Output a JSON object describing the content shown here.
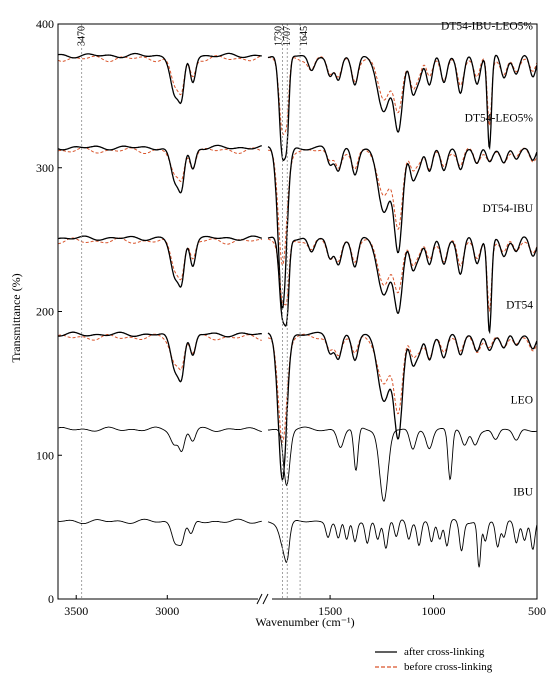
{
  "chart_data": {
    "type": "line",
    "title": "",
    "xlabel": "Wavenumber (cm⁻¹)",
    "ylabel": "Transmittance (%)",
    "x_reversed": true,
    "x_axis_broken": true,
    "x_segments": [
      [
        3600,
        2480
      ],
      [
        1800,
        500
      ]
    ],
    "ylim": [
      0,
      400
    ],
    "x_ticks": [
      3500,
      3000,
      1500,
      1000,
      500
    ],
    "y_ticks": [
      0,
      100,
      200,
      300,
      400
    ],
    "vertical_markers": [
      {
        "label": "3470",
        "x": 3470,
        "color": "#8c8c8c"
      },
      {
        "label": "1730",
        "x": 1730,
        "color": "#8c8c8c"
      },
      {
        "label": "1707",
        "x": 1707,
        "color": "#8c8c8c"
      },
      {
        "label": "1645",
        "x": 1645,
        "color": "#8c8c8c"
      }
    ],
    "legend": {
      "position": "bottom-right",
      "entries": [
        {
          "label": "after cross-linking",
          "style": "solid",
          "color": "#000000"
        },
        {
          "label": "before cross-linking",
          "style": "dashed",
          "color": "#d9542b"
        }
      ]
    },
    "series": [
      {
        "name": "DT54-IBU-LEO5%",
        "baseline": 378,
        "has_before": true,
        "peaks": [
          [
            2955,
            28,
            25
          ],
          [
            2920,
            22,
            15
          ],
          [
            2860,
            18,
            15
          ],
          [
            1730,
            70,
            15
          ],
          [
            1707,
            40,
            10
          ],
          [
            1590,
            10,
            15
          ],
          [
            1500,
            15,
            15
          ],
          [
            1460,
            18,
            15
          ],
          [
            1380,
            20,
            15
          ],
          [
            1240,
            40,
            30
          ],
          [
            1170,
            50,
            20
          ],
          [
            1100,
            25,
            15
          ],
          [
            1070,
            15,
            15
          ],
          [
            1020,
            20,
            15
          ],
          [
            950,
            20,
            15
          ],
          [
            870,
            25,
            15
          ],
          [
            790,
            20,
            15
          ],
          [
            730,
            65,
            10
          ],
          [
            660,
            15,
            15
          ],
          [
            600,
            12,
            15
          ],
          [
            520,
            15,
            15
          ]
        ]
      },
      {
        "name": "DT54-LEO5%",
        "baseline": 314,
        "has_before": true,
        "peaks": [
          [
            2955,
            25,
            25
          ],
          [
            2920,
            20,
            15
          ],
          [
            2860,
            15,
            15
          ],
          [
            1730,
            112,
            20
          ],
          [
            1500,
            12,
            15
          ],
          [
            1460,
            16,
            15
          ],
          [
            1380,
            18,
            15
          ],
          [
            1240,
            45,
            30
          ],
          [
            1170,
            70,
            20
          ],
          [
            1100,
            20,
            15
          ],
          [
            1070,
            12,
            15
          ],
          [
            1020,
            18,
            15
          ],
          [
            950,
            15,
            15
          ],
          [
            870,
            15,
            15
          ],
          [
            790,
            12,
            15
          ],
          [
            730,
            10,
            15
          ],
          [
            660,
            10,
            15
          ],
          [
            600,
            8,
            15
          ],
          [
            520,
            10,
            15
          ]
        ]
      },
      {
        "name": "DT54-IBU",
        "baseline": 251,
        "has_before": true,
        "peaks": [
          [
            2955,
            28,
            25
          ],
          [
            2920,
            22,
            15
          ],
          [
            2860,
            18,
            15
          ],
          [
            1730,
            55,
            15
          ],
          [
            1707,
            38,
            10
          ],
          [
            1590,
            10,
            15
          ],
          [
            1500,
            15,
            15
          ],
          [
            1460,
            18,
            15
          ],
          [
            1380,
            20,
            15
          ],
          [
            1240,
            40,
            30
          ],
          [
            1170,
            48,
            20
          ],
          [
            1100,
            22,
            15
          ],
          [
            1070,
            12,
            15
          ],
          [
            1020,
            18,
            15
          ],
          [
            950,
            18,
            15
          ],
          [
            870,
            25,
            15
          ],
          [
            790,
            18,
            15
          ],
          [
            730,
            65,
            10
          ],
          [
            660,
            12,
            15
          ],
          [
            600,
            10,
            15
          ],
          [
            520,
            12,
            15
          ]
        ]
      },
      {
        "name": "DT54",
        "baseline": 184,
        "has_before": true,
        "peaks": [
          [
            2955,
            25,
            25
          ],
          [
            2920,
            20,
            15
          ],
          [
            2860,
            15,
            15
          ],
          [
            1730,
            100,
            20
          ],
          [
            1500,
            12,
            15
          ],
          [
            1460,
            16,
            15
          ],
          [
            1380,
            18,
            15
          ],
          [
            1240,
            45,
            30
          ],
          [
            1170,
            70,
            20
          ],
          [
            1100,
            20,
            15
          ],
          [
            1070,
            12,
            15
          ],
          [
            1020,
            18,
            15
          ],
          [
            950,
            15,
            15
          ],
          [
            870,
            15,
            15
          ],
          [
            790,
            12,
            15
          ],
          [
            730,
            10,
            15
          ],
          [
            660,
            10,
            15
          ],
          [
            600,
            8,
            15
          ],
          [
            520,
            10,
            15
          ]
        ]
      },
      {
        "name": "LEO",
        "baseline": 118,
        "has_before": false,
        "peaks": [
          [
            2960,
            10,
            20
          ],
          [
            2920,
            14,
            15
          ],
          [
            2860,
            8,
            15
          ],
          [
            1710,
            38,
            15
          ],
          [
            1450,
            12,
            15
          ],
          [
            1375,
            30,
            10
          ],
          [
            1240,
            50,
            20
          ],
          [
            1100,
            15,
            15
          ],
          [
            1020,
            12,
            15
          ],
          [
            920,
            35,
            10
          ],
          [
            850,
            12,
            15
          ],
          [
            800,
            10,
            15
          ],
          [
            700,
            8,
            15
          ],
          [
            600,
            8,
            15
          ]
        ]
      },
      {
        "name": "IBU",
        "baseline": 54,
        "has_before": false,
        "peaks": [
          [
            2955,
            14,
            20
          ],
          [
            2920,
            12,
            15
          ],
          [
            2870,
            10,
            15
          ],
          [
            1720,
            20,
            20
          ],
          [
            1707,
            12,
            10
          ],
          [
            1510,
            10,
            10
          ],
          [
            1460,
            12,
            10
          ],
          [
            1420,
            14,
            10
          ],
          [
            1380,
            14,
            10
          ],
          [
            1320,
            15,
            10
          ],
          [
            1270,
            12,
            10
          ],
          [
            1230,
            18,
            10
          ],
          [
            1180,
            12,
            10
          ],
          [
            1120,
            12,
            10
          ],
          [
            1070,
            16,
            10
          ],
          [
            1010,
            14,
            10
          ],
          [
            970,
            12,
            10
          ],
          [
            935,
            18,
            10
          ],
          [
            865,
            20,
            10
          ],
          [
            780,
            32,
            8
          ],
          [
            750,
            14,
            10
          ],
          [
            690,
            18,
            10
          ],
          [
            660,
            12,
            10
          ],
          [
            600,
            14,
            10
          ],
          [
            560,
            12,
            10
          ],
          [
            520,
            20,
            10
          ]
        ]
      }
    ]
  }
}
